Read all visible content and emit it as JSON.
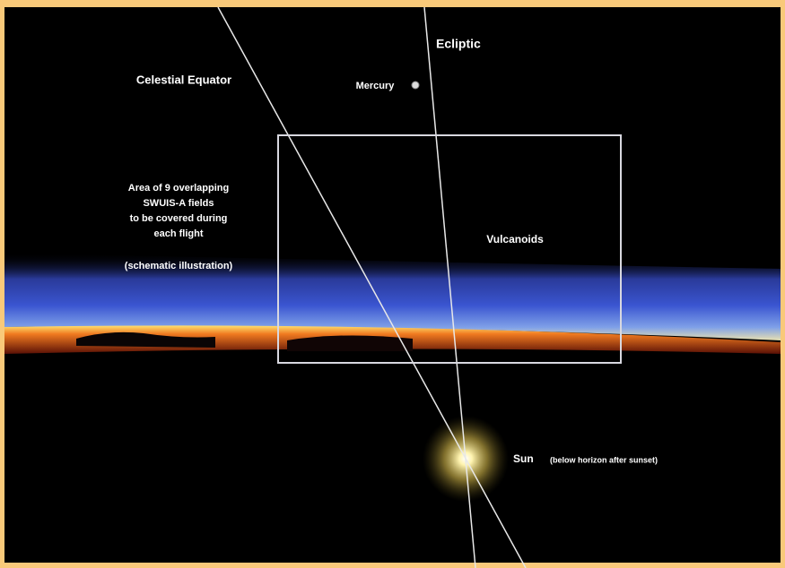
{
  "labels": {
    "ecliptic": "Ecliptic",
    "celestial_equator": "Celestial Equator",
    "mercury": "Mercury",
    "area_note": [
      "Area of 9 overlapping",
      "SWUIS-A fields",
      "to be covered during",
      "each flight"
    ],
    "schematic": "(schematic illustration)",
    "vulcanoids": "Vulcanoids",
    "sun": "Sun",
    "sun_note": "(below horizon after sunset)"
  }
}
